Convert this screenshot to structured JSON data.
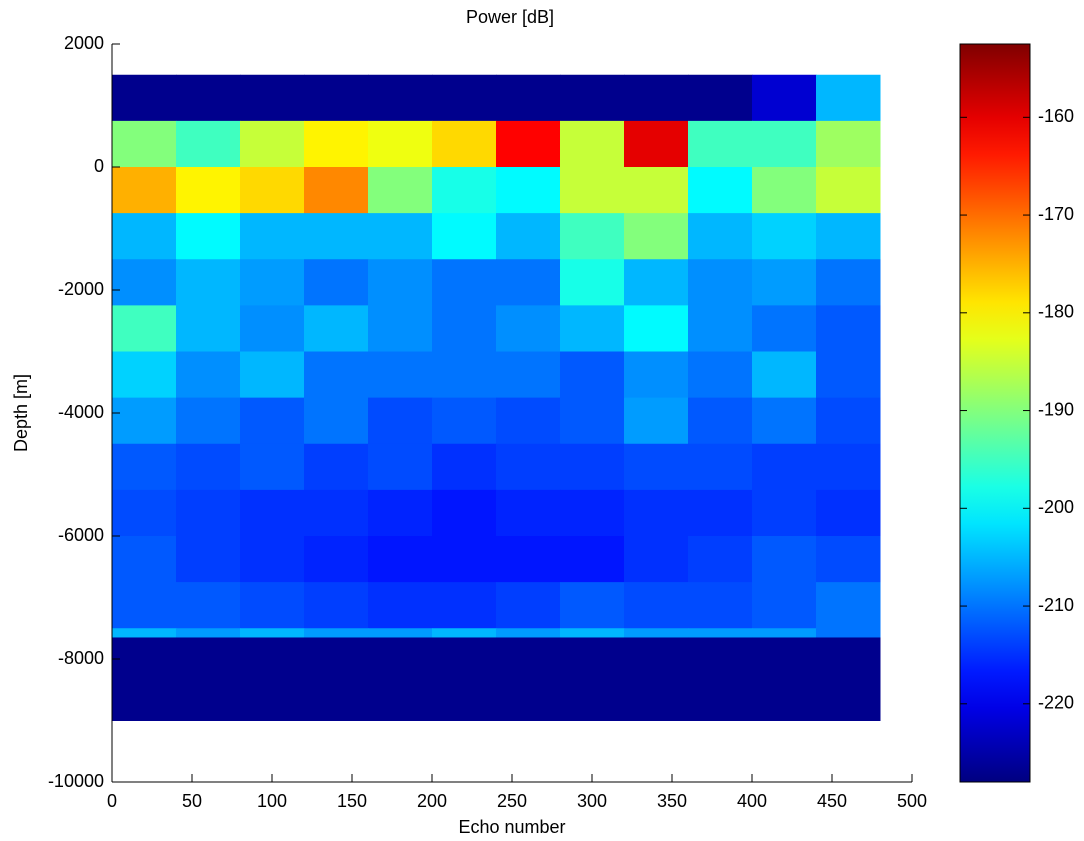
{
  "chart_data": {
    "type": "heatmap",
    "title": "Power [dB]",
    "xlabel": "Echo number",
    "ylabel": "Depth [m]",
    "xlim": [
      0,
      500
    ],
    "xticks": [
      0,
      50,
      100,
      150,
      200,
      250,
      300,
      350,
      400,
      450,
      500
    ],
    "ylim": [
      -10000,
      2000
    ],
    "yticks": [
      2000,
      0,
      -2000,
      -4000,
      -6000,
      -8000,
      -10000
    ],
    "colormap": "jet",
    "clim": [
      -228,
      -152.5
    ],
    "cticks": [
      -160,
      -170,
      -180,
      -190,
      -200,
      -210,
      -220
    ],
    "x_edges": [
      0,
      40,
      80,
      120,
      160,
      200,
      240,
      280,
      320,
      360,
      400,
      440,
      480
    ],
    "y_edges": [
      1500,
      750,
      0,
      -750,
      -1500,
      -2250,
      -3000,
      -3750,
      -4500,
      -5250,
      -6000,
      -6750,
      -7500,
      -7650,
      -9000
    ],
    "z": [
      [
        -227,
        -227,
        -227,
        -227,
        -227,
        -227,
        -227,
        -227,
        -227,
        -227,
        -222,
        -205
      ],
      [
        -190,
        -195,
        -185,
        -180,
        -182,
        -178,
        -162,
        -185,
        -160,
        -195,
        -195,
        -188
      ],
      [
        -175,
        -180,
        -178,
        -172,
        -190,
        -198,
        -200,
        -185,
        -185,
        -200,
        -190,
        -185
      ],
      [
        -205,
        -200,
        -205,
        -205,
        -205,
        -200,
        -205,
        -195,
        -190,
        -205,
        -203,
        -205
      ],
      [
        -208,
        -205,
        -207,
        -210,
        -208,
        -210,
        -210,
        -198,
        -205,
        -208,
        -207,
        -210
      ],
      [
        -195,
        -205,
        -208,
        -205,
        -208,
        -210,
        -208,
        -205,
        -200,
        -208,
        -210,
        -212
      ],
      [
        -203,
        -208,
        -205,
        -210,
        -210,
        -210,
        -210,
        -212,
        -208,
        -210,
        -205,
        -212
      ],
      [
        -207,
        -210,
        -212,
        -210,
        -213,
        -212,
        -213,
        -212,
        -207,
        -212,
        -210,
        -213
      ],
      [
        -212,
        -213,
        -212,
        -214,
        -213,
        -215,
        -214,
        -214,
        -213,
        -213,
        -214,
        -214
      ],
      [
        -213,
        -214,
        -215,
        -215,
        -216,
        -217,
        -216,
        -216,
        -215,
        -215,
        -214,
        -215
      ],
      [
        -212,
        -214,
        -215,
        -216,
        -217,
        -217,
        -217,
        -217,
        -215,
        -214,
        -212,
        -213
      ],
      [
        -212,
        -212,
        -213,
        -214,
        -215,
        -215,
        -214,
        -212,
        -213,
        -213,
        -212,
        -210
      ],
      [
        -205,
        -207,
        -205,
        -207,
        -207,
        -205,
        -207,
        -205,
        -207,
        -207,
        -207,
        -210
      ],
      [
        -227,
        -227,
        -227,
        -227,
        -227,
        -227,
        -227,
        -227,
        -227,
        -227,
        -227,
        -227
      ]
    ]
  }
}
